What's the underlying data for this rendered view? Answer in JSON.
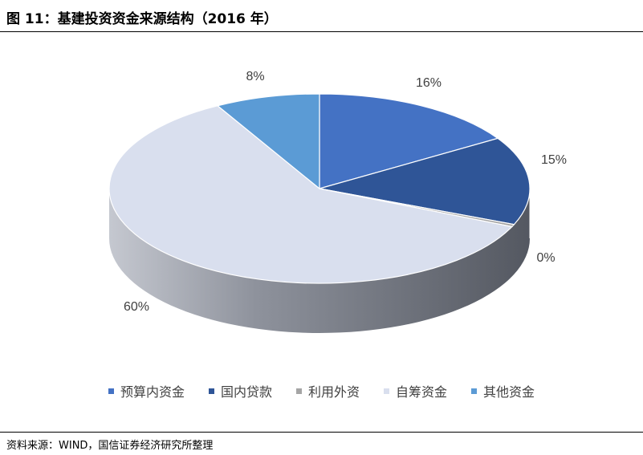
{
  "figure": {
    "title": "图 11：基建投资资金来源结构（2016 年）",
    "source": "资料来源：WIND，国信证券经济研究所整理"
  },
  "chart_data": {
    "type": "pie",
    "style": "3d",
    "series": [
      {
        "name": "预算内资金",
        "value": 16,
        "label": "16%",
        "color": "#4472C4"
      },
      {
        "name": "国内贷款",
        "value": 15,
        "label": "15%",
        "color": "#2F5597"
      },
      {
        "name": "利用外资",
        "value": 0.4,
        "label": "0%",
        "color": "#A5A5A5"
      },
      {
        "name": "自筹资金",
        "value": 60,
        "label": "60%",
        "color": "#D9DFEE"
      },
      {
        "name": "其他资金",
        "value": 8,
        "label": "8%",
        "color": "#5B9BD5"
      }
    ],
    "legend_position": "bottom"
  }
}
